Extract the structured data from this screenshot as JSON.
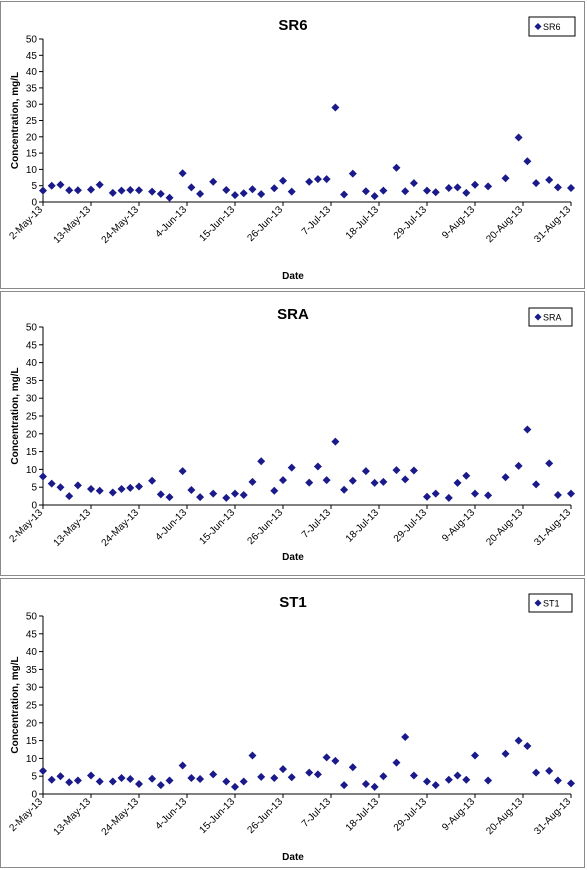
{
  "chart_data": [
    {
      "type": "scatter",
      "title": "SR6",
      "xlabel": "Date",
      "ylabel": "Concentration, mg/L",
      "ylim": [
        0,
        50
      ],
      "yticks": [
        0,
        5,
        10,
        15,
        20,
        25,
        30,
        35,
        40,
        45,
        50
      ],
      "xlim": [
        "2013-05-02",
        "2013-08-31"
      ],
      "xticks": [
        "2-May-13",
        "13-May-13",
        "24-May-13",
        "4-Jun-13",
        "15-Jun-13",
        "26-Jun-13",
        "7-Jul-13",
        "18-Jul-13",
        "29-Jul-13",
        "9-Aug-13",
        "20-Aug-13",
        "31-Aug-13"
      ],
      "grid": false,
      "legend_position": "top-right",
      "marker_color": "#1a1a8a",
      "series": [
        {
          "name": "SR6",
          "points": [
            {
              "x": "2013-05-02",
              "y": 3.5
            },
            {
              "x": "2013-05-04",
              "y": 5
            },
            {
              "x": "2013-05-06",
              "y": 5.3
            },
            {
              "x": "2013-05-08",
              "y": 3.6
            },
            {
              "x": "2013-05-10",
              "y": 3.6
            },
            {
              "x": "2013-05-13",
              "y": 3.8
            },
            {
              "x": "2013-05-15",
              "y": 5.3
            },
            {
              "x": "2013-05-18",
              "y": 2.8
            },
            {
              "x": "2013-05-20",
              "y": 3.5
            },
            {
              "x": "2013-05-22",
              "y": 3.7
            },
            {
              "x": "2013-05-24",
              "y": 3.6
            },
            {
              "x": "2013-05-27",
              "y": 3.2
            },
            {
              "x": "2013-05-29",
              "y": 2.5
            },
            {
              "x": "2013-05-31",
              "y": 1.3
            },
            {
              "x": "2013-06-03",
              "y": 8.8
            },
            {
              "x": "2013-06-05",
              "y": 4.5
            },
            {
              "x": "2013-06-07",
              "y": 2.5
            },
            {
              "x": "2013-06-10",
              "y": 6.2
            },
            {
              "x": "2013-06-13",
              "y": 3.7
            },
            {
              "x": "2013-06-15",
              "y": 2.1
            },
            {
              "x": "2013-06-17",
              "y": 2.7
            },
            {
              "x": "2013-06-19",
              "y": 3.9
            },
            {
              "x": "2013-06-21",
              "y": 2.4
            },
            {
              "x": "2013-06-24",
              "y": 4.2
            },
            {
              "x": "2013-06-26",
              "y": 6.5
            },
            {
              "x": "2013-06-28",
              "y": 3.2
            },
            {
              "x": "2013-07-02",
              "y": 6.2
            },
            {
              "x": "2013-07-04",
              "y": 7
            },
            {
              "x": "2013-07-06",
              "y": 7
            },
            {
              "x": "2013-07-08",
              "y": 29
            },
            {
              "x": "2013-07-10",
              "y": 2.3
            },
            {
              "x": "2013-07-12",
              "y": 8.7
            },
            {
              "x": "2013-07-15",
              "y": 3.3
            },
            {
              "x": "2013-07-17",
              "y": 1.8
            },
            {
              "x": "2013-07-19",
              "y": 3.5
            },
            {
              "x": "2013-07-22",
              "y": 10.5
            },
            {
              "x": "2013-07-24",
              "y": 3.3
            },
            {
              "x": "2013-07-26",
              "y": 5.8
            },
            {
              "x": "2013-07-29",
              "y": 3.5
            },
            {
              "x": "2013-07-31",
              "y": 3
            },
            {
              "x": "2013-08-03",
              "y": 4.3
            },
            {
              "x": "2013-08-05",
              "y": 4.5
            },
            {
              "x": "2013-08-07",
              "y": 2.8
            },
            {
              "x": "2013-08-09",
              "y": 5.3
            },
            {
              "x": "2013-08-12",
              "y": 4.8
            },
            {
              "x": "2013-08-16",
              "y": 7.3
            },
            {
              "x": "2013-08-19",
              "y": 19.8
            },
            {
              "x": "2013-08-21",
              "y": 12.5
            },
            {
              "x": "2013-08-23",
              "y": 5.8
            },
            {
              "x": "2013-08-26",
              "y": 6.8
            },
            {
              "x": "2013-08-28",
              "y": 4.5
            },
            {
              "x": "2013-08-31",
              "y": 4.3
            }
          ]
        }
      ]
    },
    {
      "type": "scatter",
      "title": "SRA",
      "xlabel": "Date",
      "ylabel": "Concentration, mg/L",
      "ylim": [
        0,
        50
      ],
      "yticks": [
        0,
        5,
        10,
        15,
        20,
        25,
        30,
        35,
        40,
        45,
        50
      ],
      "xlim": [
        "2013-05-02",
        "2013-08-31"
      ],
      "xticks": [
        "2-May-13",
        "13-May-13",
        "24-May-13",
        "4-Jun-13",
        "15-Jun-13",
        "26-Jun-13",
        "7-Jul-13",
        "18-Jul-13",
        "29-Jul-13",
        "9-Aug-13",
        "20-Aug-13",
        "31-Aug-13"
      ],
      "grid": false,
      "legend_position": "top-right",
      "marker_color": "#1a1a8a",
      "series": [
        {
          "name": "SRA",
          "points": [
            {
              "x": "2013-05-02",
              "y": 8
            },
            {
              "x": "2013-05-04",
              "y": 6
            },
            {
              "x": "2013-05-06",
              "y": 5
            },
            {
              "x": "2013-05-08",
              "y": 2.5
            },
            {
              "x": "2013-05-10",
              "y": 5.5
            },
            {
              "x": "2013-05-13",
              "y": 4.5
            },
            {
              "x": "2013-05-15",
              "y": 4
            },
            {
              "x": "2013-05-18",
              "y": 3.5
            },
            {
              "x": "2013-05-20",
              "y": 4.5
            },
            {
              "x": "2013-05-22",
              "y": 4.8
            },
            {
              "x": "2013-05-24",
              "y": 5.2
            },
            {
              "x": "2013-05-27",
              "y": 6.8
            },
            {
              "x": "2013-05-29",
              "y": 3
            },
            {
              "x": "2013-05-31",
              "y": 2.2
            },
            {
              "x": "2013-06-03",
              "y": 9.5
            },
            {
              "x": "2013-06-05",
              "y": 4.2
            },
            {
              "x": "2013-06-07",
              "y": 2.2
            },
            {
              "x": "2013-06-10",
              "y": 3.2
            },
            {
              "x": "2013-06-13",
              "y": 2
            },
            {
              "x": "2013-06-15",
              "y": 3.2
            },
            {
              "x": "2013-06-17",
              "y": 2.8
            },
            {
              "x": "2013-06-19",
              "y": 6.5
            },
            {
              "x": "2013-06-21",
              "y": 12.3
            },
            {
              "x": "2013-06-24",
              "y": 4
            },
            {
              "x": "2013-06-26",
              "y": 7
            },
            {
              "x": "2013-06-28",
              "y": 10.5
            },
            {
              "x": "2013-07-02",
              "y": 6.3
            },
            {
              "x": "2013-07-04",
              "y": 10.8
            },
            {
              "x": "2013-07-06",
              "y": 7
            },
            {
              "x": "2013-07-08",
              "y": 17.8
            },
            {
              "x": "2013-07-10",
              "y": 4.3
            },
            {
              "x": "2013-07-12",
              "y": 6.8
            },
            {
              "x": "2013-07-15",
              "y": 9.5
            },
            {
              "x": "2013-07-17",
              "y": 6.2
            },
            {
              "x": "2013-07-19",
              "y": 6.5
            },
            {
              "x": "2013-07-22",
              "y": 9.8
            },
            {
              "x": "2013-07-24",
              "y": 7.2
            },
            {
              "x": "2013-07-26",
              "y": 9.7
            },
            {
              "x": "2013-07-29",
              "y": 2.3
            },
            {
              "x": "2013-07-31",
              "y": 3.2
            },
            {
              "x": "2013-08-03",
              "y": 2
            },
            {
              "x": "2013-08-05",
              "y": 6.2
            },
            {
              "x": "2013-08-07",
              "y": 8.2
            },
            {
              "x": "2013-08-09",
              "y": 3.2
            },
            {
              "x": "2013-08-12",
              "y": 2.7
            },
            {
              "x": "2013-08-16",
              "y": 7.8
            },
            {
              "x": "2013-08-19",
              "y": 11
            },
            {
              "x": "2013-08-21",
              "y": 21.2
            },
            {
              "x": "2013-08-23",
              "y": 5.8
            },
            {
              "x": "2013-08-26",
              "y": 11.7
            },
            {
              "x": "2013-08-28",
              "y": 2.8
            },
            {
              "x": "2013-08-31",
              "y": 3.2
            }
          ]
        }
      ]
    },
    {
      "type": "scatter",
      "title": "ST1",
      "xlabel": "Date",
      "ylabel": "Concentration, mg/L",
      "ylim": [
        0,
        50
      ],
      "yticks": [
        0,
        5,
        10,
        15,
        20,
        25,
        30,
        35,
        40,
        45,
        50
      ],
      "xlim": [
        "2013-05-02",
        "2013-08-31"
      ],
      "xticks": [
        "2-May-13",
        "13-May-13",
        "24-May-13",
        "4-Jun-13",
        "15-Jun-13",
        "26-Jun-13",
        "7-Jul-13",
        "18-Jul-13",
        "29-Jul-13",
        "9-Aug-13",
        "20-Aug-13",
        "31-Aug-13"
      ],
      "grid": false,
      "legend_position": "top-right",
      "marker_color": "#1a1a8a",
      "series": [
        {
          "name": "ST1",
          "points": [
            {
              "x": "2013-05-02",
              "y": 6.5
            },
            {
              "x": "2013-05-04",
              "y": 4
            },
            {
              "x": "2013-05-06",
              "y": 5
            },
            {
              "x": "2013-05-08",
              "y": 3.3
            },
            {
              "x": "2013-05-10",
              "y": 3.8
            },
            {
              "x": "2013-05-13",
              "y": 5.2
            },
            {
              "x": "2013-05-15",
              "y": 3.5
            },
            {
              "x": "2013-05-18",
              "y": 3.5
            },
            {
              "x": "2013-05-20",
              "y": 4.5
            },
            {
              "x": "2013-05-22",
              "y": 4.2
            },
            {
              "x": "2013-05-24",
              "y": 2.8
            },
            {
              "x": "2013-05-27",
              "y": 4.3
            },
            {
              "x": "2013-05-29",
              "y": 2.5
            },
            {
              "x": "2013-05-31",
              "y": 3.8
            },
            {
              "x": "2013-06-03",
              "y": 8
            },
            {
              "x": "2013-06-05",
              "y": 4.5
            },
            {
              "x": "2013-06-07",
              "y": 4.2
            },
            {
              "x": "2013-06-10",
              "y": 5.5
            },
            {
              "x": "2013-06-13",
              "y": 3.5
            },
            {
              "x": "2013-06-15",
              "y": 2
            },
            {
              "x": "2013-06-17",
              "y": 3.5
            },
            {
              "x": "2013-06-19",
              "y": 10.8
            },
            {
              "x": "2013-06-21",
              "y": 4.8
            },
            {
              "x": "2013-06-24",
              "y": 4.5
            },
            {
              "x": "2013-06-26",
              "y": 7
            },
            {
              "x": "2013-06-28",
              "y": 4.7
            },
            {
              "x": "2013-07-02",
              "y": 6
            },
            {
              "x": "2013-07-04",
              "y": 5.5
            },
            {
              "x": "2013-07-06",
              "y": 10.3
            },
            {
              "x": "2013-07-08",
              "y": 9.3
            },
            {
              "x": "2013-07-10",
              "y": 2.5
            },
            {
              "x": "2013-07-12",
              "y": 7.5
            },
            {
              "x": "2013-07-15",
              "y": 2.8
            },
            {
              "x": "2013-07-17",
              "y": 2
            },
            {
              "x": "2013-07-19",
              "y": 5
            },
            {
              "x": "2013-07-22",
              "y": 8.8
            },
            {
              "x": "2013-07-24",
              "y": 16
            },
            {
              "x": "2013-07-26",
              "y": 5.2
            },
            {
              "x": "2013-07-29",
              "y": 3.5
            },
            {
              "x": "2013-07-31",
              "y": 2.5
            },
            {
              "x": "2013-08-03",
              "y": 4
            },
            {
              "x": "2013-08-05",
              "y": 5.2
            },
            {
              "x": "2013-08-07",
              "y": 4
            },
            {
              "x": "2013-08-09",
              "y": 10.8
            },
            {
              "x": "2013-08-12",
              "y": 3.8
            },
            {
              "x": "2013-08-16",
              "y": 11.3
            },
            {
              "x": "2013-08-19",
              "y": 15
            },
            {
              "x": "2013-08-21",
              "y": 13.5
            },
            {
              "x": "2013-08-23",
              "y": 6
            },
            {
              "x": "2013-08-26",
              "y": 6.5
            },
            {
              "x": "2013-08-28",
              "y": 3.8
            },
            {
              "x": "2013-08-31",
              "y": 3
            }
          ]
        }
      ]
    }
  ]
}
